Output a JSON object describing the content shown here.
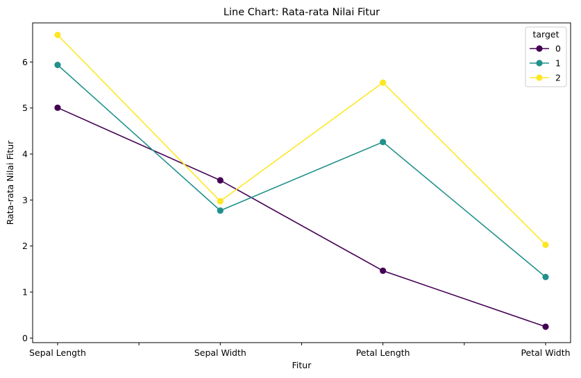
{
  "chart_data": {
    "type": "line",
    "title": "Line Chart: Rata-rata Nilai Fitur",
    "xlabel": "Fitur",
    "ylabel": "Rata-rata Nilai Fitur",
    "categories": [
      "Sepal Length",
      "Sepal Width",
      "Petal Length",
      "Petal Width"
    ],
    "ylim": [
      -0.1,
      6.85
    ],
    "yticks": [
      0,
      1,
      2,
      3,
      4,
      5,
      6
    ],
    "grid": false,
    "legend": {
      "title": "target",
      "position": "top-right"
    },
    "series": [
      {
        "name": "0",
        "color": "#440154",
        "values": [
          5.006,
          3.428,
          1.462,
          0.246
        ]
      },
      {
        "name": "1",
        "color": "#21918c",
        "values": [
          5.936,
          2.77,
          4.26,
          1.326
        ]
      },
      {
        "name": "2",
        "color": "#fde725",
        "values": [
          6.588,
          2.974,
          5.552,
          2.026
        ]
      }
    ]
  }
}
